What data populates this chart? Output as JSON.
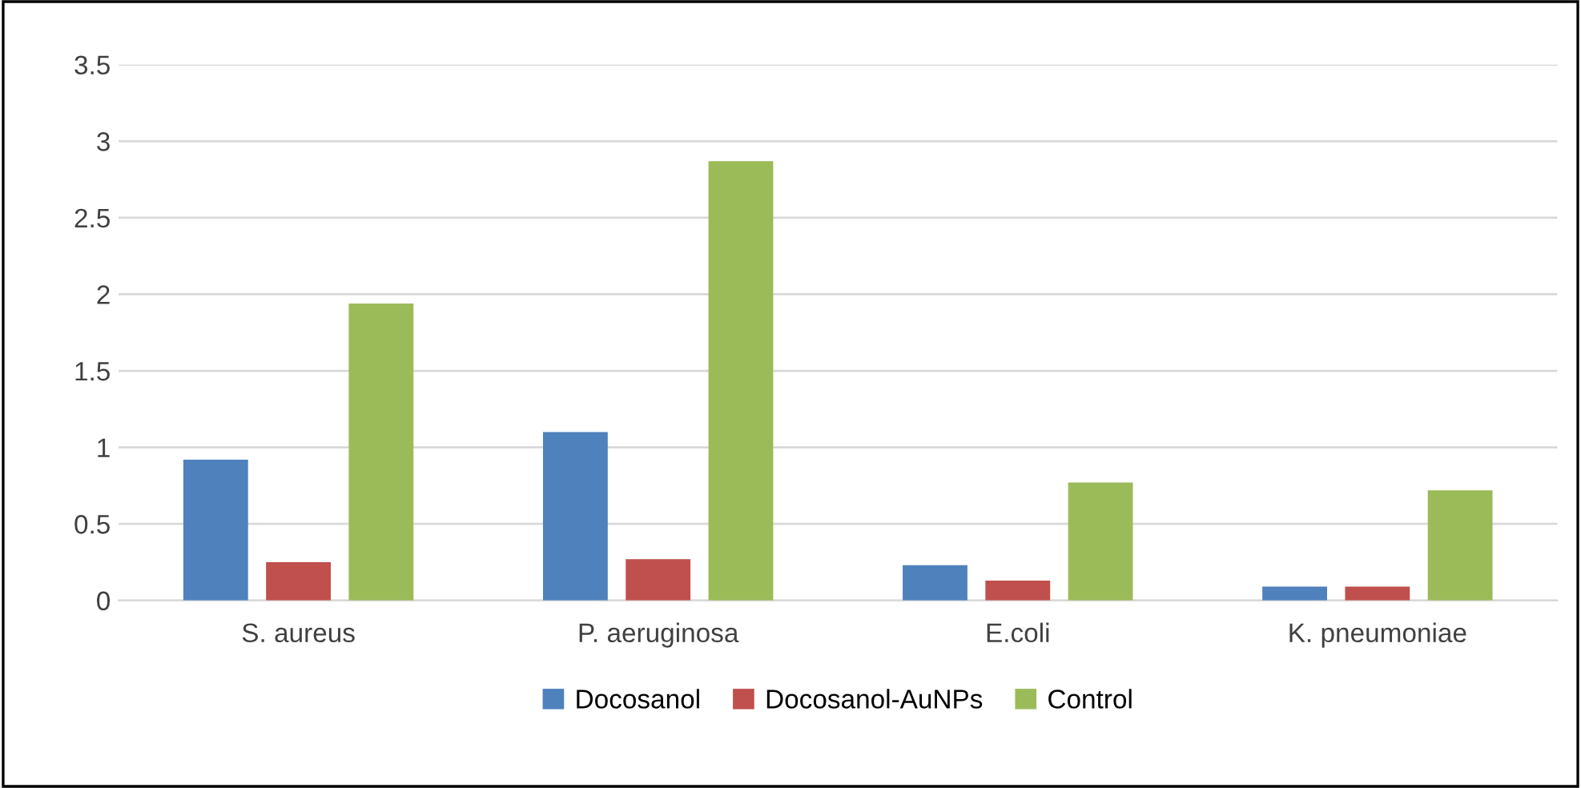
{
  "chart_data": {
    "type": "bar",
    "categories": [
      "S. aureus",
      "P. aeruginosa",
      "E.coli",
      "K. pneumoniae"
    ],
    "series": [
      {
        "name": "Docosanol",
        "color": "#4f81bd",
        "values": [
          0.92,
          1.1,
          0.23,
          0.09
        ]
      },
      {
        "name": "Docosanol-AuNPs",
        "color": "#c0504d",
        "values": [
          0.25,
          0.27,
          0.13,
          0.09
        ]
      },
      {
        "name": "Control",
        "color": "#9bbb59",
        "values": [
          1.94,
          2.87,
          0.77,
          0.72
        ]
      }
    ],
    "ylim": [
      0,
      3.5
    ],
    "yticks": [
      0,
      0.5,
      1,
      1.5,
      2,
      2.5,
      3,
      3.5
    ],
    "grid": "y",
    "legend": "bottom"
  }
}
